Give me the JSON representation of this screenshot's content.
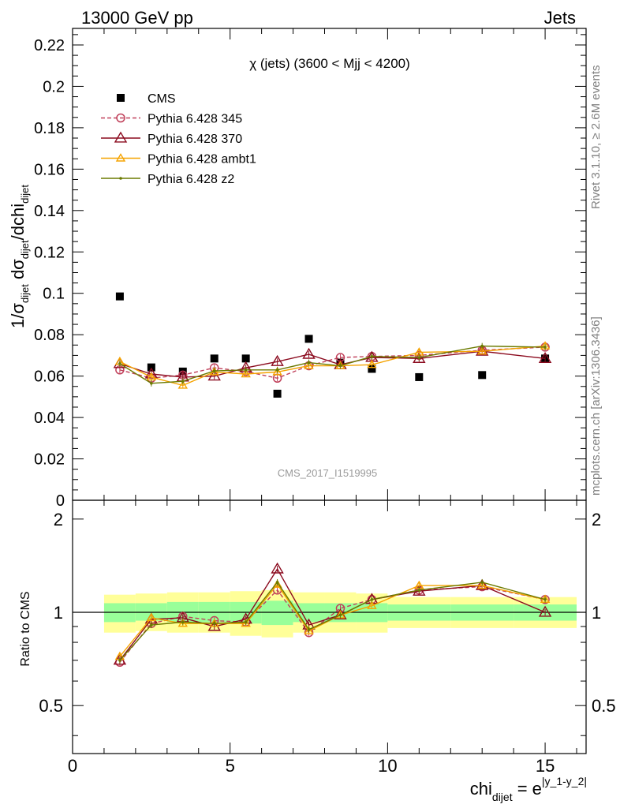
{
  "header": {
    "left": "13000 GeV pp",
    "right": "Jets"
  },
  "side_labels": {
    "rivet": "Rivet 3.1.10, ≥ 2.6M events",
    "mcplots": "mcplots.cern.ch [arXiv:1306.3436]"
  },
  "chart_data": [
    {
      "type": "scatter",
      "title": "χ (jets) (3600 < Mjj < 4200)",
      "watermark": "CMS_2017_I1519995",
      "ylabel": "1/σ_dijet dσ_dijet/dchi_dijet",
      "ylim": [
        0,
        0.228
      ],
      "xlim": [
        0,
        16.3
      ],
      "y_ticks": [
        "0",
        "0.02",
        "0.04",
        "0.06",
        "0.08",
        "0.1",
        "0.12",
        "0.14",
        "0.16",
        "0.18",
        "0.2",
        "0.22"
      ],
      "legend_position": "top-left",
      "x": [
        1.5,
        2.5,
        3.5,
        4.5,
        5.5,
        6.5,
        7.5,
        8.5,
        9.5,
        11,
        13,
        15
      ],
      "series": [
        {
          "name": "CMS",
          "color": "#000000",
          "style": "data",
          "values": [
            0.0985,
            0.0642,
            0.0622,
            0.0685,
            0.0685,
            0.0515,
            0.078,
            0.0665,
            0.0635,
            0.0595,
            0.0605,
            0.0685
          ]
        },
        {
          "name": "Pythia 6.428 345",
          "color": "#c0405a",
          "style": "dashed-circle",
          "values": [
            0.063,
            0.059,
            0.0605,
            0.064,
            0.0622,
            0.059,
            0.065,
            0.069,
            0.0695,
            0.07,
            0.0725,
            0.074
          ]
        },
        {
          "name": "Pythia 6.428 370",
          "color": "#8b0a1e",
          "style": "solid-triangle-open",
          "values": [
            0.066,
            0.061,
            0.0595,
            0.06,
            0.064,
            0.067,
            0.0705,
            0.0655,
            0.069,
            0.0685,
            0.072,
            0.0685
          ]
        },
        {
          "name": "Pythia 6.428 ambt1",
          "color": "#f5a300",
          "style": "solid-triangle-open",
          "values": [
            0.067,
            0.0595,
            0.0555,
            0.062,
            0.061,
            0.062,
            0.065,
            0.065,
            0.0655,
            0.0715,
            0.072,
            0.0745
          ]
        },
        {
          "name": "Pythia 6.428 z2",
          "color": "#6b7a00",
          "style": "solid-dot",
          "values": [
            0.066,
            0.0565,
            0.0575,
            0.0625,
            0.063,
            0.063,
            0.0665,
            0.065,
            0.0695,
            0.069,
            0.0745,
            0.074
          ]
        }
      ]
    },
    {
      "type": "scatter",
      "ylabel": "Ratio to CMS",
      "xlabel": "chi_dijet = e^|y_1-y_2|",
      "ylim": [
        0.35,
        2.3
      ],
      "xlim": [
        0,
        16.3
      ],
      "y_ticks": [
        "0.5",
        "1",
        "2"
      ],
      "x_ticks": [
        "0",
        "5",
        "10",
        "15"
      ],
      "bands": {
        "edges": [
          1,
          2,
          3,
          4,
          5,
          6,
          7,
          8,
          9,
          10,
          12,
          14,
          16
        ],
        "inner_color": "#99ff99",
        "outer_color": "#ffff99",
        "inner_lo": [
          0.93,
          0.94,
          0.93,
          0.93,
          0.92,
          0.91,
          0.93,
          0.93,
          0.93,
          0.94,
          0.94,
          0.94
        ],
        "inner_hi": [
          1.07,
          1.07,
          1.08,
          1.08,
          1.08,
          1.09,
          1.07,
          1.07,
          1.07,
          1.06,
          1.06,
          1.06
        ],
        "outer_lo": [
          0.86,
          0.87,
          0.86,
          0.86,
          0.84,
          0.83,
          0.86,
          0.86,
          0.86,
          0.89,
          0.89,
          0.89
        ],
        "outer_hi": [
          1.14,
          1.15,
          1.16,
          1.16,
          1.17,
          1.18,
          1.16,
          1.16,
          1.15,
          1.12,
          1.12,
          1.12
        ]
      },
      "x": [
        1.5,
        2.5,
        3.5,
        4.5,
        5.5,
        6.5,
        7.5,
        8.5,
        9.5,
        11,
        13,
        15
      ],
      "series": [
        {
          "name": "Pythia 6.428 345",
          "color": "#c0405a",
          "style": "dashed-circle",
          "values": [
            0.69,
            0.92,
            0.97,
            0.94,
            0.93,
            1.18,
            0.86,
            1.03,
            1.1,
            1.18,
            1.21,
            1.1
          ]
        },
        {
          "name": "Pythia 6.428 370",
          "color": "#8b0a1e",
          "style": "solid-triangle-open",
          "values": [
            0.7,
            0.95,
            0.96,
            0.9,
            0.95,
            1.38,
            0.91,
            0.98,
            1.1,
            1.17,
            1.22,
            1.0
          ]
        },
        {
          "name": "Pythia 6.428 ambt1",
          "color": "#f5a300",
          "style": "solid-triangle-open",
          "values": [
            0.72,
            0.96,
            0.92,
            0.92,
            0.92,
            1.23,
            0.87,
            0.98,
            1.05,
            1.22,
            1.22,
            1.1
          ]
        },
        {
          "name": "Pythia 6.428 z2",
          "color": "#6b7a00",
          "style": "solid-dot",
          "values": [
            0.7,
            0.91,
            0.93,
            0.92,
            0.93,
            1.25,
            0.88,
            0.98,
            1.1,
            1.18,
            1.25,
            1.1
          ]
        }
      ]
    }
  ]
}
